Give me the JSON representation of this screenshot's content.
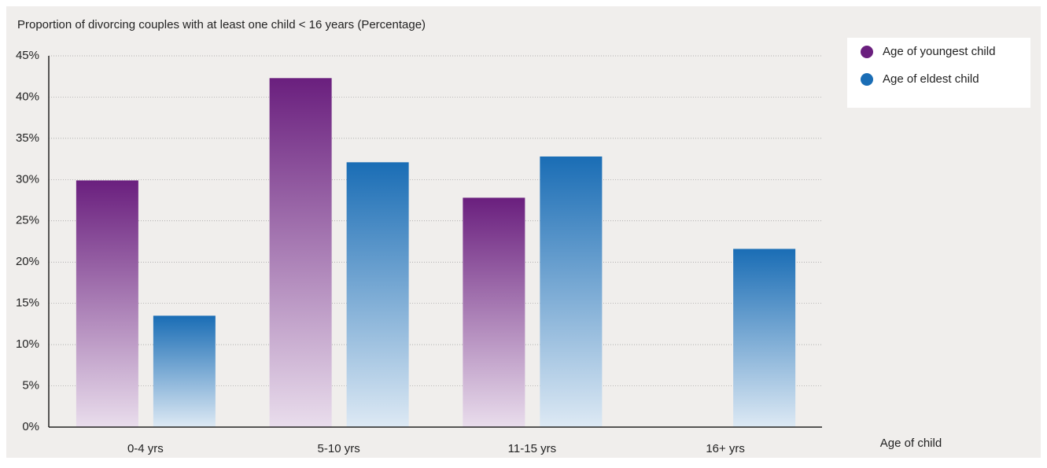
{
  "chart_data": {
    "type": "bar",
    "title": "Proportion of divorcing couples with at least one child < 16 years  (Percentage)",
    "x_label": "Age of child",
    "categories": [
      "0-4 yrs",
      "5-10 yrs",
      "11-15 yrs",
      "16+ yrs"
    ],
    "series": [
      {
        "name": "Age of youngest child",
        "color": "#6a1f7e",
        "values": [
          29.9,
          42.3,
          27.8,
          null
        ]
      },
      {
        "name": "Age of eldest child",
        "color": "#1a6db5",
        "values": [
          13.5,
          32.1,
          32.8,
          21.6
        ]
      }
    ],
    "ylim": [
      0,
      45
    ],
    "yticks": [
      {
        "value": 0,
        "label": "0%"
      },
      {
        "value": 5,
        "label": "5%"
      },
      {
        "value": 10,
        "label": "10%"
      },
      {
        "value": 15,
        "label": "15%"
      },
      {
        "value": 20,
        "label": "20%"
      },
      {
        "value": 25,
        "label": "25%"
      },
      {
        "value": 30,
        "label": "30%"
      },
      {
        "value": 35,
        "label": "35%"
      },
      {
        "value": 40,
        "label": "40%"
      },
      {
        "value": 45,
        "label": "45%"
      }
    ],
    "grid": true,
    "legend": "top-right"
  }
}
